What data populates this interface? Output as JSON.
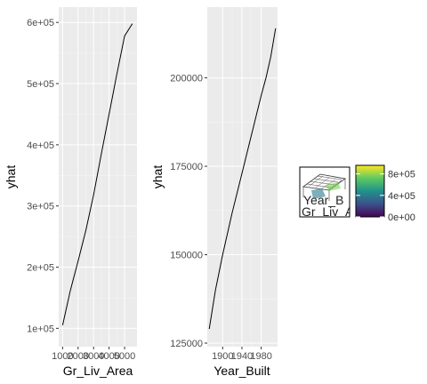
{
  "chart_data": [
    {
      "type": "line",
      "xlabel": "Gr_Liv_Area",
      "ylabel": "yhat",
      "xlim": [
        750,
        5800
      ],
      "ylim": [
        70000,
        625000
      ],
      "x_ticks": [
        1000,
        2000,
        3000,
        4000,
        5000
      ],
      "x_tick_labels": [
        "1000",
        "2000",
        "3000",
        "4000",
        "5000"
      ],
      "y_ticks": [
        100000,
        200000,
        300000,
        400000,
        500000,
        600000
      ],
      "y_tick_labels": [
        "1e+05",
        "2e+05",
        "3e+05",
        "4e+05",
        "5e+05",
        "6e+05"
      ],
      "grid": true,
      "x": [
        1000,
        1500,
        2000,
        2500,
        3000,
        3500,
        4000,
        4500,
        5000,
        5500
      ],
      "y": [
        105000,
        162000,
        210000,
        260000,
        318000,
        385000,
        450000,
        515000,
        578000,
        598000
      ]
    },
    {
      "type": "line",
      "xlabel": "Year_Built",
      "ylabel": "yhat",
      "xlim": [
        1868,
        2014
      ],
      "ylim": [
        124000,
        220000
      ],
      "x_ticks": [
        1900,
        1940,
        1980
      ],
      "x_tick_labels": [
        "1900",
        "1940",
        "1980"
      ],
      "y_ticks": [
        125000,
        150000,
        175000,
        200000
      ],
      "y_tick_labels": [
        "125000",
        "150000",
        "175000",
        "200000"
      ],
      "grid": true,
      "x": [
        1872,
        1885,
        1900,
        1920,
        1940,
        1960,
        1980,
        1990,
        2000,
        2010
      ],
      "y": [
        129000,
        140000,
        150000,
        162000,
        173000,
        184000,
        195000,
        200000,
        206000,
        214000
      ]
    },
    {
      "type": "heatmap",
      "legend_labels": [
        "8e+05",
        "4e+05",
        "0e+00"
      ],
      "legend_values": [
        800000,
        400000,
        0
      ],
      "legend_range": [
        0,
        960000
      ],
      "thumbnail_text_1": "Year_B",
      "thumbnail_text_2": "Gr_Liv_Are"
    }
  ]
}
